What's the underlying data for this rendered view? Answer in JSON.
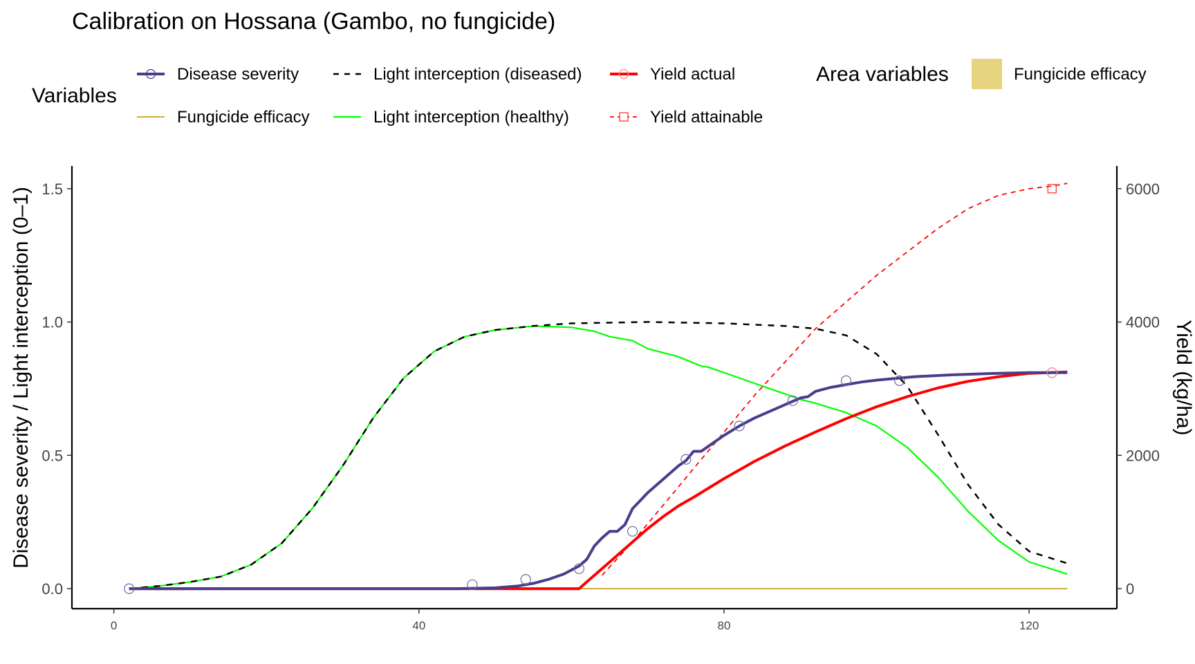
{
  "chart_data": {
    "type": "line",
    "title": "Calibration on Hossana (Gambo, no fungicide)",
    "ylabel": "Disease severity / Light interception (0–1)",
    "y2label": "Yield (kg/ha)",
    "xlabel": "",
    "xlim": [
      -5.5,
      131.5
    ],
    "ylim": [
      -0.075,
      1.585
    ],
    "y2lim": [
      -300,
      6340
    ],
    "xticks": [
      0,
      40,
      80,
      120
    ],
    "xtick_labels": [
      "0",
      "40",
      "80",
      "120"
    ],
    "yticks": [
      0.0,
      0.5,
      1.0,
      1.5
    ],
    "ytick_labels": [
      "0.0",
      "0.5",
      "1.0",
      "1.5"
    ],
    "y2ticks": [
      0,
      2000,
      4000,
      6000
    ],
    "y2tick_labels": [
      "0",
      "2000",
      "4000",
      "6000"
    ],
    "legend_title": "Variables",
    "area_legend_title": "Area variables",
    "area_legend_label": "Fungicide efficacy",
    "legend_position": "top",
    "grid": false,
    "colors": {
      "disease": "#483D8B",
      "fungicide": "#C8A21F",
      "li_diseased": "#000000",
      "li_healthy": "#00FF00",
      "yield_actual": "#FF0000",
      "yield_attainable": "#FF0000",
      "area_fill": "#E6D47E"
    },
    "series": [
      {
        "key": "disease",
        "name": "Disease severity",
        "axis": "left",
        "x": [
          2,
          45,
          50,
          53,
          55,
          57,
          59,
          61,
          62,
          63,
          64,
          65,
          66,
          67,
          68,
          69,
          70,
          72,
          74,
          75,
          76,
          77,
          78,
          80,
          82,
          84,
          86,
          88,
          90,
          91,
          92,
          94,
          96,
          98,
          100,
          105,
          110,
          115,
          120,
          125
        ],
        "y": [
          0.0,
          0.0,
          0.003,
          0.01,
          0.02,
          0.035,
          0.055,
          0.085,
          0.11,
          0.16,
          0.19,
          0.215,
          0.215,
          0.24,
          0.3,
          0.33,
          0.36,
          0.41,
          0.46,
          0.48,
          0.515,
          0.515,
          0.535,
          0.575,
          0.61,
          0.64,
          0.665,
          0.69,
          0.715,
          0.72,
          0.74,
          0.755,
          0.765,
          0.775,
          0.782,
          0.795,
          0.802,
          0.807,
          0.81,
          0.81
        ]
      },
      {
        "key": "disease_obs",
        "name": "Disease severity (observed)",
        "axis": "left",
        "x": [
          2,
          47,
          54,
          61,
          68,
          75,
          82,
          89,
          96,
          103,
          123
        ],
        "y": [
          0.0,
          0.015,
          0.035,
          0.075,
          0.215,
          0.485,
          0.61,
          0.705,
          0.78,
          0.78,
          0.81
        ]
      },
      {
        "key": "fungicide",
        "name": "Fungicide efficacy",
        "axis": "left",
        "x": [
          2,
          125
        ],
        "y": [
          0.0,
          0.0
        ]
      },
      {
        "key": "li_diseased",
        "name": "Light interception (diseased)",
        "axis": "left",
        "x": [
          2,
          6,
          10,
          14,
          18,
          22,
          26,
          30,
          34,
          38,
          42,
          46,
          50,
          55,
          60,
          70,
          80,
          88,
          92,
          96,
          100,
          104,
          108,
          112,
          116,
          120,
          125
        ],
        "y": [
          0.0,
          0.01,
          0.025,
          0.045,
          0.09,
          0.17,
          0.3,
          0.46,
          0.64,
          0.79,
          0.89,
          0.945,
          0.97,
          0.985,
          0.995,
          1.0,
          0.995,
          0.985,
          0.975,
          0.95,
          0.88,
          0.76,
          0.58,
          0.39,
          0.24,
          0.14,
          0.095
        ]
      },
      {
        "key": "li_healthy",
        "name": "Light interception (healthy)",
        "axis": "left",
        "x": [
          2,
          6,
          10,
          14,
          18,
          22,
          26,
          30,
          34,
          38,
          42,
          46,
          50,
          55,
          60,
          63,
          65,
          67,
          68,
          69,
          70,
          74,
          77,
          78,
          82,
          86,
          90,
          92,
          96,
          100,
          104,
          108,
          112,
          116,
          120,
          125
        ],
        "y": [
          0.0,
          0.01,
          0.025,
          0.045,
          0.09,
          0.17,
          0.3,
          0.46,
          0.64,
          0.79,
          0.89,
          0.945,
          0.97,
          0.985,
          0.98,
          0.965,
          0.945,
          0.935,
          0.93,
          0.915,
          0.9,
          0.87,
          0.835,
          0.83,
          0.79,
          0.75,
          0.71,
          0.695,
          0.66,
          0.61,
          0.53,
          0.42,
          0.29,
          0.18,
          0.1,
          0.055
        ]
      },
      {
        "key": "yield_actual",
        "name": "Yield actual",
        "axis": "right",
        "x": [
          2,
          61,
          62,
          65,
          68,
          70,
          72,
          74,
          76,
          78,
          80,
          84,
          88,
          92,
          96,
          100,
          104,
          108,
          112,
          116,
          120,
          125
        ],
        "y": [
          0,
          0,
          100,
          400,
          700,
          900,
          1080,
          1240,
          1370,
          1510,
          1650,
          1910,
          2140,
          2350,
          2550,
          2730,
          2880,
          3010,
          3110,
          3180,
          3230,
          3250
        ]
      },
      {
        "key": "yield_attainable",
        "name": "Yield attainable",
        "axis": "right",
        "x": [
          64,
          68,
          72,
          76,
          80,
          84,
          88,
          92,
          96,
          100,
          104,
          108,
          112,
          116,
          120,
          123,
          125
        ],
        "y": [
          200,
          700,
          1250,
          1800,
          2350,
          2900,
          3400,
          3900,
          4300,
          4700,
          5050,
          5400,
          5700,
          5900,
          6000,
          6040,
          6080
        ]
      },
      {
        "key": "yield_attainable_obs",
        "name": "Yield attainable (observed)",
        "axis": "right",
        "x": [
          123
        ],
        "y": [
          6000
        ]
      },
      {
        "key": "yield_actual_obs",
        "name": "Yield actual (observed)",
        "axis": "right",
        "x": [
          123
        ],
        "y": [
          3240
        ]
      }
    ],
    "legend_items": [
      {
        "key": "disease",
        "label": "Disease severity"
      },
      {
        "key": "li_diseased",
        "label": "Light interception (diseased)"
      },
      {
        "key": "yield_actual",
        "label": "Yield actual"
      },
      {
        "key": "fungicide",
        "label": "Fungicide efficacy"
      },
      {
        "key": "li_healthy",
        "label": "Light interception (healthy)"
      },
      {
        "key": "yield_attainable",
        "label": "Yield attainable"
      }
    ]
  }
}
